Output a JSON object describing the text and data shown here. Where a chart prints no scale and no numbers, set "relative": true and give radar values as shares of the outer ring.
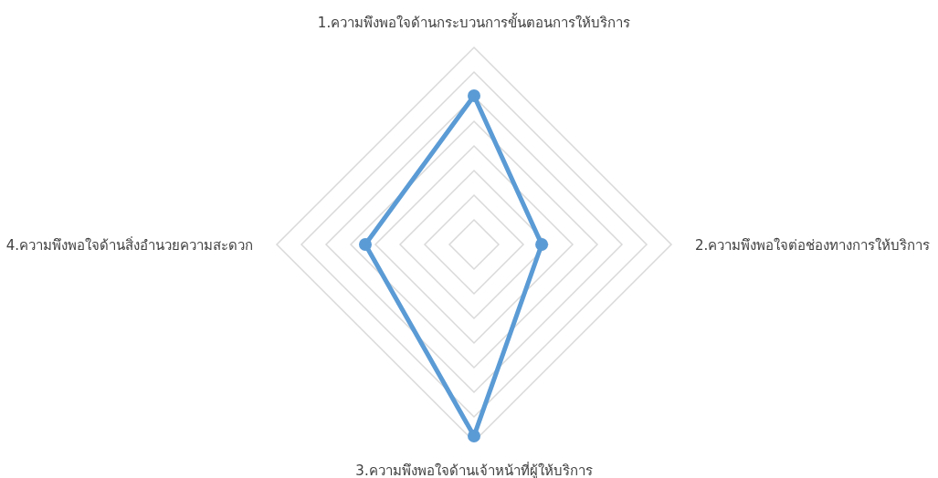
{
  "chart_data": {
    "type": "radar",
    "relative": true,
    "grid": true,
    "marker": "circle",
    "categories": [
      "1.ความพึงพอใจด้านกระบวนการขั้นตอนการให้บริการ",
      "2.ความพึงพอใจต่อช่องทางการให้บริการ",
      "3.ความพึงพอใจด้านเจ้าหน้าที่ผู้ให้บริการ",
      "4.ความพึงพอใจด้านสิ่งอำนวยความสะดวก"
    ],
    "series": [
      {
        "color": "#5b9bd5",
        "values": [
          0.755,
          0.343,
          0.972,
          0.551
        ]
      }
    ]
  }
}
